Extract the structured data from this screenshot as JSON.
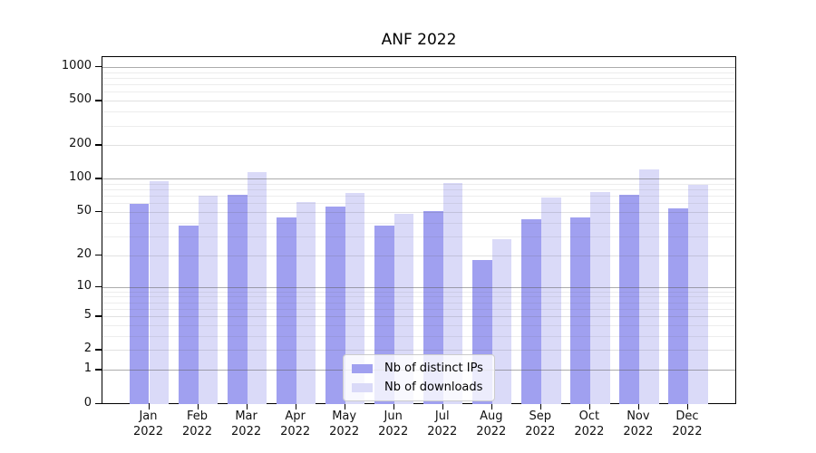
{
  "figure": {
    "background": "#ffffff",
    "axis_color": "#000000"
  },
  "chart_data": {
    "type": "bar",
    "title": "ANF 2022",
    "categories": [
      "Jan",
      "Feb",
      "Mar",
      "Apr",
      "May",
      "Jun",
      "Jul",
      "Aug",
      "Sep",
      "Oct",
      "Nov",
      "Dec"
    ],
    "category_year": "2022",
    "series": [
      {
        "name": "Nb of distinct IPs",
        "color": "#a0a0f0",
        "values": [
          59,
          38,
          72,
          45,
          56,
          38,
          51,
          18,
          43,
          45,
          72,
          54
        ]
      },
      {
        "name": "Nb of downloads",
        "color": "#dadaf8",
        "values": [
          96,
          70,
          114,
          62,
          74,
          48,
          91,
          28,
          68,
          76,
          121,
          88
        ]
      }
    ],
    "xlabel": "",
    "ylabel": "",
    "yscale": "log1p",
    "yticks": [
      0,
      1,
      2,
      5,
      10,
      20,
      50,
      100,
      200,
      500,
      1000
    ],
    "ylim": [
      0,
      1250
    ],
    "grid": true,
    "legend_position": "lower center"
  }
}
